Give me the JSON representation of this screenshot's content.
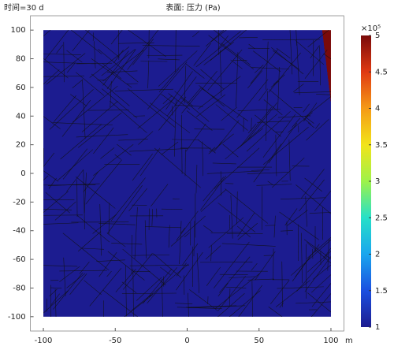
{
  "chart_data": {
    "type": "surface",
    "title": "表面: 压力 (Pa)",
    "time_label": "时间=30 d",
    "x_unit": "m",
    "xlim": [
      -109,
      109
    ],
    "ylim": [
      -110,
      110
    ],
    "xticks": [
      -100,
      -50,
      0,
      50,
      100
    ],
    "yticks": [
      -100,
      -80,
      -60,
      -40,
      -20,
      0,
      20,
      40,
      60,
      80,
      100
    ],
    "domain": [
      -100,
      100
    ],
    "colorbar_label": "×10⁵",
    "clim": [
      1,
      5
    ],
    "cticks": [
      1,
      1.5,
      2,
      2.5,
      3,
      3.5,
      4,
      4.5,
      5
    ],
    "colormap": [
      "#1c1c90",
      "#1b4fe0",
      "#1aa6ee",
      "#26e0c8",
      "#9ef24a",
      "#f2e41a",
      "#f59a16",
      "#e03a12",
      "#7a0a0a"
    ]
  }
}
